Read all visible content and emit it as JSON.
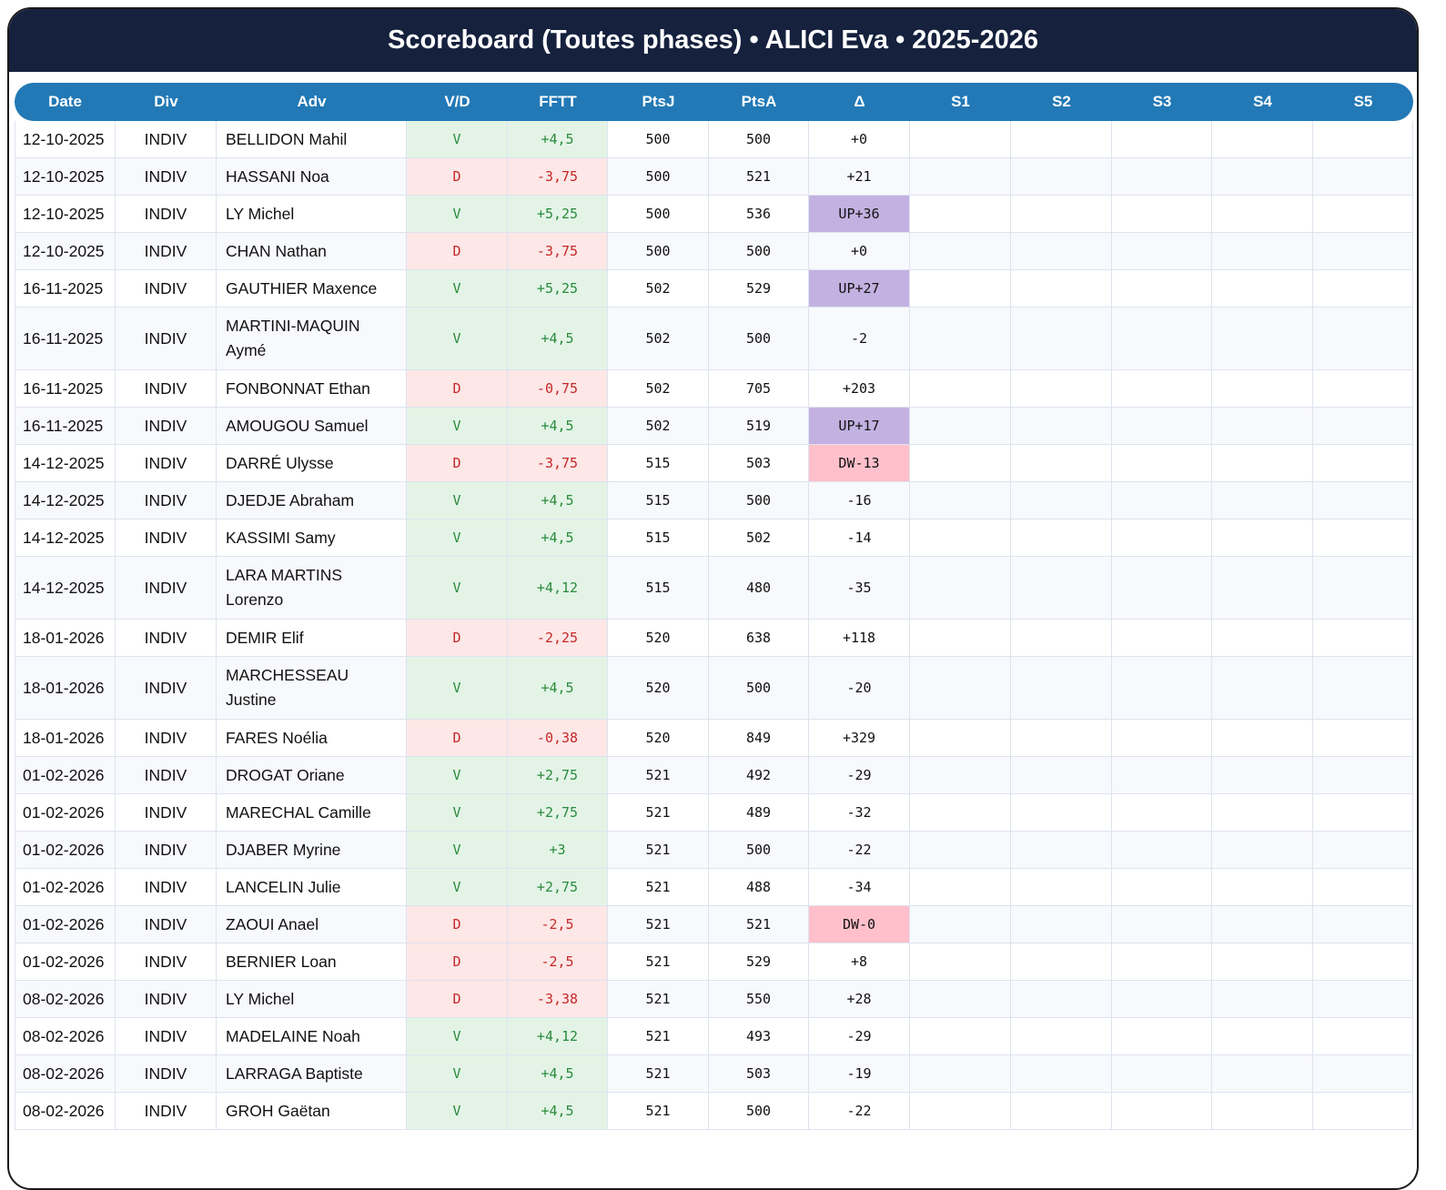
{
  "title": "Scoreboard (Toutes phases) • ALICI Eva • 2025-2026",
  "columns": [
    "Date",
    "Div",
    "Adv",
    "V/D",
    "FFTT",
    "PtsJ",
    "PtsA",
    "Δ",
    "S1",
    "S2",
    "S3",
    "S4",
    "S5"
  ],
  "colors": {
    "header_bg": "#15213d",
    "column_header_bg": "#2279b5",
    "win_bg": "#e3f4e7",
    "win_text": "#2a8a3c",
    "loss_bg": "#fde7e7",
    "loss_text": "#c62828",
    "up_bg": "#c3b1e1",
    "dw_bg": "#ffc0cb"
  },
  "rows": [
    {
      "date": "12-10-2025",
      "div": "INDIV",
      "adv": "BELLIDON Mahil",
      "vd": "V",
      "fftt": "+4,5",
      "ptsj": "500",
      "ptsa": "500",
      "delta": "+0"
    },
    {
      "date": "12-10-2025",
      "div": "INDIV",
      "adv": "HASSANI Noa",
      "vd": "D",
      "fftt": "-3,75",
      "ptsj": "500",
      "ptsa": "521",
      "delta": "+21"
    },
    {
      "date": "12-10-2025",
      "div": "INDIV",
      "adv": "LY Michel",
      "vd": "V",
      "fftt": "+5,25",
      "ptsj": "500",
      "ptsa": "536",
      "delta": "UP+36"
    },
    {
      "date": "12-10-2025",
      "div": "INDIV",
      "adv": "CHAN Nathan",
      "vd": "D",
      "fftt": "-3,75",
      "ptsj": "500",
      "ptsa": "500",
      "delta": "+0"
    },
    {
      "date": "16-11-2025",
      "div": "INDIV",
      "adv": "GAUTHIER Maxence",
      "vd": "V",
      "fftt": "+5,25",
      "ptsj": "502",
      "ptsa": "529",
      "delta": "UP+27"
    },
    {
      "date": "16-11-2025",
      "div": "INDIV",
      "adv": "MARTINI-MAQUIN Aymé",
      "vd": "V",
      "fftt": "+4,5",
      "ptsj": "502",
      "ptsa": "500",
      "delta": "-2"
    },
    {
      "date": "16-11-2025",
      "div": "INDIV",
      "adv": "FONBONNAT Ethan",
      "vd": "D",
      "fftt": "-0,75",
      "ptsj": "502",
      "ptsa": "705",
      "delta": "+203"
    },
    {
      "date": "16-11-2025",
      "div": "INDIV",
      "adv": "AMOUGOU Samuel",
      "vd": "V",
      "fftt": "+4,5",
      "ptsj": "502",
      "ptsa": "519",
      "delta": "UP+17"
    },
    {
      "date": "14-12-2025",
      "div": "INDIV",
      "adv": "DARRÉ Ulysse",
      "vd": "D",
      "fftt": "-3,75",
      "ptsj": "515",
      "ptsa": "503",
      "delta": "DW-13"
    },
    {
      "date": "14-12-2025",
      "div": "INDIV",
      "adv": "DJEDJE Abraham",
      "vd": "V",
      "fftt": "+4,5",
      "ptsj": "515",
      "ptsa": "500",
      "delta": "-16"
    },
    {
      "date": "14-12-2025",
      "div": "INDIV",
      "adv": "KASSIMI Samy",
      "vd": "V",
      "fftt": "+4,5",
      "ptsj": "515",
      "ptsa": "502",
      "delta": "-14"
    },
    {
      "date": "14-12-2025",
      "div": "INDIV",
      "adv": "LARA MARTINS Lorenzo",
      "vd": "V",
      "fftt": "+4,12",
      "ptsj": "515",
      "ptsa": "480",
      "delta": "-35"
    },
    {
      "date": "18-01-2026",
      "div": "INDIV",
      "adv": "DEMIR Elif",
      "vd": "D",
      "fftt": "-2,25",
      "ptsj": "520",
      "ptsa": "638",
      "delta": "+118"
    },
    {
      "date": "18-01-2026",
      "div": "INDIV",
      "adv": "MARCHESSEAU Justine",
      "vd": "V",
      "fftt": "+4,5",
      "ptsj": "520",
      "ptsa": "500",
      "delta": "-20"
    },
    {
      "date": "18-01-2026",
      "div": "INDIV",
      "adv": "FARES Noélia",
      "vd": "D",
      "fftt": "-0,38",
      "ptsj": "520",
      "ptsa": "849",
      "delta": "+329"
    },
    {
      "date": "01-02-2026",
      "div": "INDIV",
      "adv": "DROGAT Oriane",
      "vd": "V",
      "fftt": "+2,75",
      "ptsj": "521",
      "ptsa": "492",
      "delta": "-29"
    },
    {
      "date": "01-02-2026",
      "div": "INDIV",
      "adv": "MARECHAL Camille",
      "vd": "V",
      "fftt": "+2,75",
      "ptsj": "521",
      "ptsa": "489",
      "delta": "-32"
    },
    {
      "date": "01-02-2026",
      "div": "INDIV",
      "adv": "DJABER Myrine",
      "vd": "V",
      "fftt": "+3",
      "ptsj": "521",
      "ptsa": "500",
      "delta": "-22"
    },
    {
      "date": "01-02-2026",
      "div": "INDIV",
      "adv": "LANCELIN Julie",
      "vd": "V",
      "fftt": "+2,75",
      "ptsj": "521",
      "ptsa": "488",
      "delta": "-34"
    },
    {
      "date": "01-02-2026",
      "div": "INDIV",
      "adv": "ZAOUI Anael",
      "vd": "D",
      "fftt": "-2,5",
      "ptsj": "521",
      "ptsa": "521",
      "delta": "DW-0"
    },
    {
      "date": "01-02-2026",
      "div": "INDIV",
      "adv": "BERNIER Loan",
      "vd": "D",
      "fftt": "-2,5",
      "ptsj": "521",
      "ptsa": "529",
      "delta": "+8"
    },
    {
      "date": "08-02-2026",
      "div": "INDIV",
      "adv": "LY Michel",
      "vd": "D",
      "fftt": "-3,38",
      "ptsj": "521",
      "ptsa": "550",
      "delta": "+28"
    },
    {
      "date": "08-02-2026",
      "div": "INDIV",
      "adv": "MADELAINE Noah",
      "vd": "V",
      "fftt": "+4,12",
      "ptsj": "521",
      "ptsa": "493",
      "delta": "-29"
    },
    {
      "date": "08-02-2026",
      "div": "INDIV",
      "adv": "LARRAGA Baptiste",
      "vd": "V",
      "fftt": "+4,5",
      "ptsj": "521",
      "ptsa": "503",
      "delta": "-19"
    },
    {
      "date": "08-02-2026",
      "div": "INDIV",
      "adv": "GROH Gaëtan",
      "vd": "V",
      "fftt": "+4,5",
      "ptsj": "521",
      "ptsa": "500",
      "delta": "-22"
    }
  ]
}
